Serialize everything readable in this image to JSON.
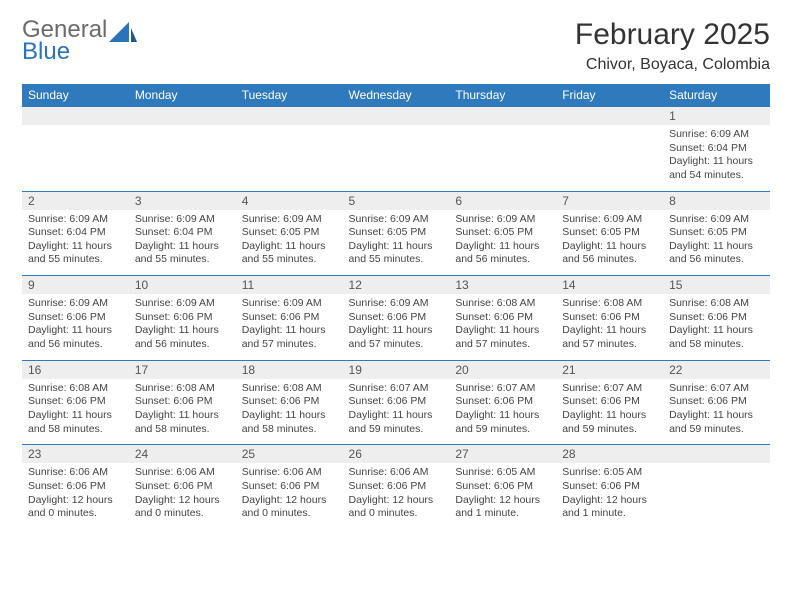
{
  "logo": {
    "word1": "General",
    "word2": "Blue",
    "accent_color": "#2a73b8",
    "gray_color": "#6b6b6b"
  },
  "header": {
    "month_title": "February 2025",
    "location": "Chivor, Boyaca, Colombia"
  },
  "weekdays": [
    "Sunday",
    "Monday",
    "Tuesday",
    "Wednesday",
    "Thursday",
    "Friday",
    "Saturday"
  ],
  "colors": {
    "header_bg": "#2f79bd",
    "header_text": "#ffffff",
    "daynum_bg": "#eeeeee",
    "rule": "#2f79bd",
    "body_text": "#444444"
  },
  "weeks": [
    [
      {
        "n": "",
        "sr": "",
        "ss": "",
        "dl": ""
      },
      {
        "n": "",
        "sr": "",
        "ss": "",
        "dl": ""
      },
      {
        "n": "",
        "sr": "",
        "ss": "",
        "dl": ""
      },
      {
        "n": "",
        "sr": "",
        "ss": "",
        "dl": ""
      },
      {
        "n": "",
        "sr": "",
        "ss": "",
        "dl": ""
      },
      {
        "n": "",
        "sr": "",
        "ss": "",
        "dl": ""
      },
      {
        "n": "1",
        "sr": "Sunrise: 6:09 AM",
        "ss": "Sunset: 6:04 PM",
        "dl": "Daylight: 11 hours and 54 minutes."
      }
    ],
    [
      {
        "n": "2",
        "sr": "Sunrise: 6:09 AM",
        "ss": "Sunset: 6:04 PM",
        "dl": "Daylight: 11 hours and 55 minutes."
      },
      {
        "n": "3",
        "sr": "Sunrise: 6:09 AM",
        "ss": "Sunset: 6:04 PM",
        "dl": "Daylight: 11 hours and 55 minutes."
      },
      {
        "n": "4",
        "sr": "Sunrise: 6:09 AM",
        "ss": "Sunset: 6:05 PM",
        "dl": "Daylight: 11 hours and 55 minutes."
      },
      {
        "n": "5",
        "sr": "Sunrise: 6:09 AM",
        "ss": "Sunset: 6:05 PM",
        "dl": "Daylight: 11 hours and 55 minutes."
      },
      {
        "n": "6",
        "sr": "Sunrise: 6:09 AM",
        "ss": "Sunset: 6:05 PM",
        "dl": "Daylight: 11 hours and 56 minutes."
      },
      {
        "n": "7",
        "sr": "Sunrise: 6:09 AM",
        "ss": "Sunset: 6:05 PM",
        "dl": "Daylight: 11 hours and 56 minutes."
      },
      {
        "n": "8",
        "sr": "Sunrise: 6:09 AM",
        "ss": "Sunset: 6:05 PM",
        "dl": "Daylight: 11 hours and 56 minutes."
      }
    ],
    [
      {
        "n": "9",
        "sr": "Sunrise: 6:09 AM",
        "ss": "Sunset: 6:06 PM",
        "dl": "Daylight: 11 hours and 56 minutes."
      },
      {
        "n": "10",
        "sr": "Sunrise: 6:09 AM",
        "ss": "Sunset: 6:06 PM",
        "dl": "Daylight: 11 hours and 56 minutes."
      },
      {
        "n": "11",
        "sr": "Sunrise: 6:09 AM",
        "ss": "Sunset: 6:06 PM",
        "dl": "Daylight: 11 hours and 57 minutes."
      },
      {
        "n": "12",
        "sr": "Sunrise: 6:09 AM",
        "ss": "Sunset: 6:06 PM",
        "dl": "Daylight: 11 hours and 57 minutes."
      },
      {
        "n": "13",
        "sr": "Sunrise: 6:08 AM",
        "ss": "Sunset: 6:06 PM",
        "dl": "Daylight: 11 hours and 57 minutes."
      },
      {
        "n": "14",
        "sr": "Sunrise: 6:08 AM",
        "ss": "Sunset: 6:06 PM",
        "dl": "Daylight: 11 hours and 57 minutes."
      },
      {
        "n": "15",
        "sr": "Sunrise: 6:08 AM",
        "ss": "Sunset: 6:06 PM",
        "dl": "Daylight: 11 hours and 58 minutes."
      }
    ],
    [
      {
        "n": "16",
        "sr": "Sunrise: 6:08 AM",
        "ss": "Sunset: 6:06 PM",
        "dl": "Daylight: 11 hours and 58 minutes."
      },
      {
        "n": "17",
        "sr": "Sunrise: 6:08 AM",
        "ss": "Sunset: 6:06 PM",
        "dl": "Daylight: 11 hours and 58 minutes."
      },
      {
        "n": "18",
        "sr": "Sunrise: 6:08 AM",
        "ss": "Sunset: 6:06 PM",
        "dl": "Daylight: 11 hours and 58 minutes."
      },
      {
        "n": "19",
        "sr": "Sunrise: 6:07 AM",
        "ss": "Sunset: 6:06 PM",
        "dl": "Daylight: 11 hours and 59 minutes."
      },
      {
        "n": "20",
        "sr": "Sunrise: 6:07 AM",
        "ss": "Sunset: 6:06 PM",
        "dl": "Daylight: 11 hours and 59 minutes."
      },
      {
        "n": "21",
        "sr": "Sunrise: 6:07 AM",
        "ss": "Sunset: 6:06 PM",
        "dl": "Daylight: 11 hours and 59 minutes."
      },
      {
        "n": "22",
        "sr": "Sunrise: 6:07 AM",
        "ss": "Sunset: 6:06 PM",
        "dl": "Daylight: 11 hours and 59 minutes."
      }
    ],
    [
      {
        "n": "23",
        "sr": "Sunrise: 6:06 AM",
        "ss": "Sunset: 6:06 PM",
        "dl": "Daylight: 12 hours and 0 minutes."
      },
      {
        "n": "24",
        "sr": "Sunrise: 6:06 AM",
        "ss": "Sunset: 6:06 PM",
        "dl": "Daylight: 12 hours and 0 minutes."
      },
      {
        "n": "25",
        "sr": "Sunrise: 6:06 AM",
        "ss": "Sunset: 6:06 PM",
        "dl": "Daylight: 12 hours and 0 minutes."
      },
      {
        "n": "26",
        "sr": "Sunrise: 6:06 AM",
        "ss": "Sunset: 6:06 PM",
        "dl": "Daylight: 12 hours and 0 minutes."
      },
      {
        "n": "27",
        "sr": "Sunrise: 6:05 AM",
        "ss": "Sunset: 6:06 PM",
        "dl": "Daylight: 12 hours and 1 minute."
      },
      {
        "n": "28",
        "sr": "Sunrise: 6:05 AM",
        "ss": "Sunset: 6:06 PM",
        "dl": "Daylight: 12 hours and 1 minute."
      },
      {
        "n": "",
        "sr": "",
        "ss": "",
        "dl": ""
      }
    ]
  ]
}
